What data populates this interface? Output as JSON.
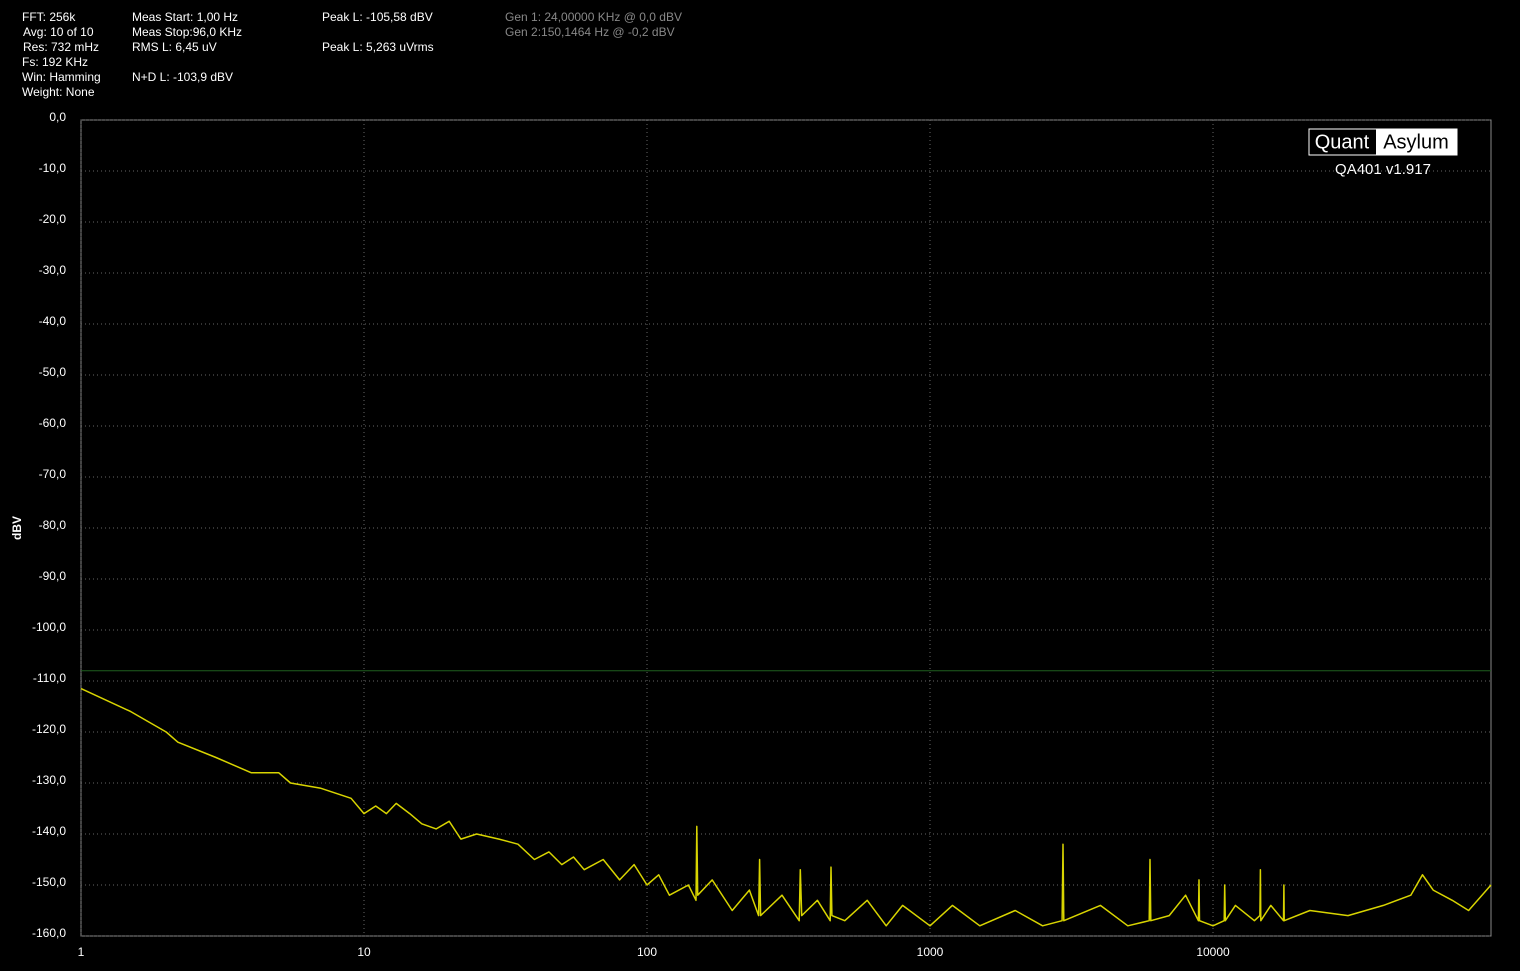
{
  "chart_data": {
    "type": "line",
    "y_label": "dBV",
    "log_x": true,
    "grid": true,
    "xlim": [
      1,
      96000
    ],
    "ylim": [
      -160,
      0
    ],
    "xticks": [
      1,
      10,
      100,
      1000,
      10000
    ],
    "yticks": [
      {
        "value": 0,
        "label": "0,0"
      },
      {
        "value": -10,
        "label": "-10,0"
      },
      {
        "value": -20,
        "label": "-20,0"
      },
      {
        "value": -30,
        "label": "-30,0"
      },
      {
        "value": -40,
        "label": "-40,0"
      },
      {
        "value": -50,
        "label": "-50,0"
      },
      {
        "value": -60,
        "label": "-60,0"
      },
      {
        "value": -70,
        "label": "-70,0"
      },
      {
        "value": -80,
        "label": "-80,0"
      },
      {
        "value": -90,
        "label": "-90,0"
      },
      {
        "value": -100,
        "label": "-100,0"
      },
      {
        "value": -110,
        "label": "-110,0"
      },
      {
        "value": -120,
        "label": "-120,0"
      },
      {
        "value": -130,
        "label": "-130,0"
      },
      {
        "value": -140,
        "label": "-140,0"
      },
      {
        "value": -150,
        "label": "-150,0"
      },
      {
        "value": -160,
        "label": "-160,0"
      }
    ],
    "reference_line": {
      "value": -108,
      "color": "#1f5f1f"
    },
    "color": "#d8d400",
    "x": [
      1,
      1.5,
      2,
      2.2,
      3,
      4,
      5,
      5.5,
      7,
      9,
      10,
      11,
      12,
      13,
      14.5,
      16,
      18,
      20,
      22,
      25,
      30,
      35,
      40,
      45,
      50,
      55,
      60,
      70,
      80,
      90,
      100,
      110,
      120,
      140,
      149,
      150,
      151,
      170,
      200,
      230,
      248,
      250,
      252,
      300,
      345,
      348,
      352,
      400,
      444,
      447,
      450,
      500,
      600,
      700,
      800,
      1000,
      1200,
      1500,
      2000,
      2500,
      2930,
      2950,
      2970,
      4000,
      5000,
      5950,
      5990,
      6030,
      7000,
      8000,
      8880,
      8920,
      8960,
      10000,
      10950,
      11000,
      11050,
      12000,
      14000,
      14650,
      14700,
      14750,
      16000,
      17750,
      17800,
      17850,
      22000,
      30000,
      40000,
      50000,
      55000,
      60000,
      70000,
      80000,
      96000
    ],
    "values": [
      -111.5,
      -116,
      -120,
      -122,
      -125,
      -128,
      -128,
      -130,
      -131,
      -133,
      -136,
      -134.5,
      -136,
      -134,
      -136,
      -138,
      -139,
      -137.5,
      -141,
      -140,
      -141,
      -142,
      -145,
      -143.5,
      -146,
      -144.5,
      -147,
      -145,
      -149,
      -146,
      -150,
      -148,
      -152,
      -150,
      -153,
      -138.5,
      -152,
      -149,
      -155,
      -151,
      -156,
      -145,
      -156,
      -152,
      -157,
      -147,
      -156,
      -153,
      -157,
      -146.5,
      -156,
      -157,
      -153,
      -158,
      -154,
      -158,
      -154,
      -158,
      -155,
      -158,
      -157,
      -142,
      -157,
      -154,
      -158,
      -157,
      -145,
      -157,
      -156,
      -152,
      -157,
      -149,
      -157,
      -158,
      -157,
      -150,
      -157,
      -154,
      -157,
      -156,
      -147,
      -157,
      -154,
      -157,
      -150,
      -157,
      -155,
      -156,
      -154,
      -152,
      -148,
      -151,
      -153,
      -155,
      -150
    ],
    "logo": {
      "left": "Quant",
      "right": "Asylum",
      "version": "QA401 v1.917"
    },
    "info_columns": [
      [
        "FFT: 256k",
        "Avg: 10 of 10",
        "Res: 732 mHz",
        "Fs: 192 KHz",
        "Win: Hamming",
        "Weight: None"
      ],
      [
        "Meas Start: 1,00 Hz",
        "Meas Stop:96,0 KHz",
        "RMS L: 6,45 uV",
        null,
        "N+D L: -103,9 dBV"
      ],
      [
        "Peak L: -105,58 dBV",
        null,
        "Peak L: 5,263 uVrms"
      ],
      [
        "Gen 1: 24,00000 KHz @ 0,0  dBV",
        "Gen 2:150,1464 Hz @ -0,2  dBV"
      ]
    ]
  }
}
